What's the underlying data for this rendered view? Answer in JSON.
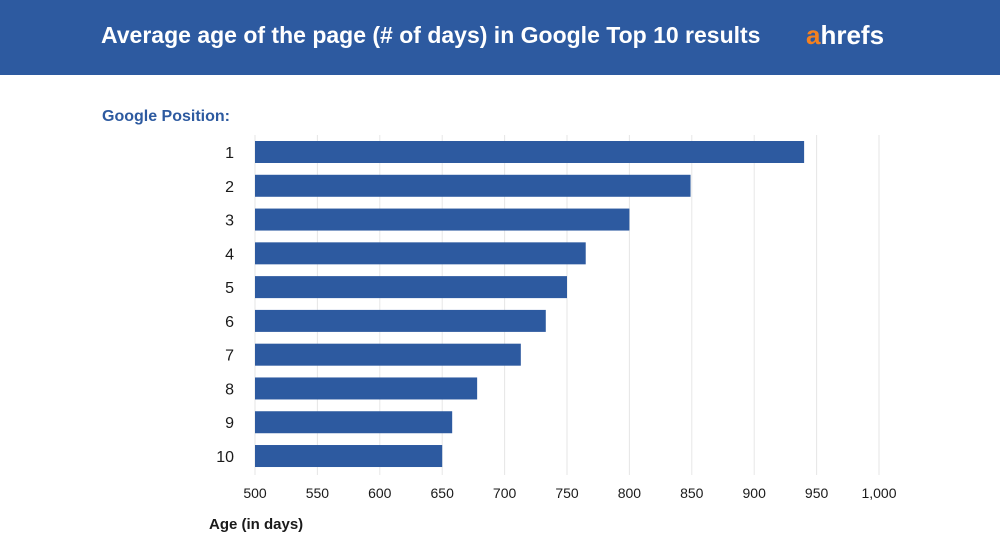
{
  "header": {
    "title": "Average age of the page (# of days) in Google Top 10 results",
    "logo_accent": "a",
    "logo_rest": "hrefs"
  },
  "colors": {
    "header_bg": "#2d5aa0",
    "bar": "#2d5aa0",
    "logo_accent": "#f48120",
    "grid": "#e6e6e6"
  },
  "chart_data": {
    "type": "bar",
    "orientation": "horizontal",
    "category_axis_title": "Google Position:",
    "xlabel": "Age (in days)",
    "categories": [
      "1",
      "2",
      "3",
      "4",
      "5",
      "6",
      "7",
      "8",
      "9",
      "10"
    ],
    "values": [
      940,
      849,
      800,
      765,
      750,
      733,
      713,
      678,
      658,
      650
    ],
    "xlim": [
      500,
      1000
    ],
    "xticks": [
      "500",
      "550",
      "600",
      "650",
      "700",
      "750",
      "800",
      "850",
      "900",
      "950",
      "1,000"
    ],
    "grid": true
  }
}
